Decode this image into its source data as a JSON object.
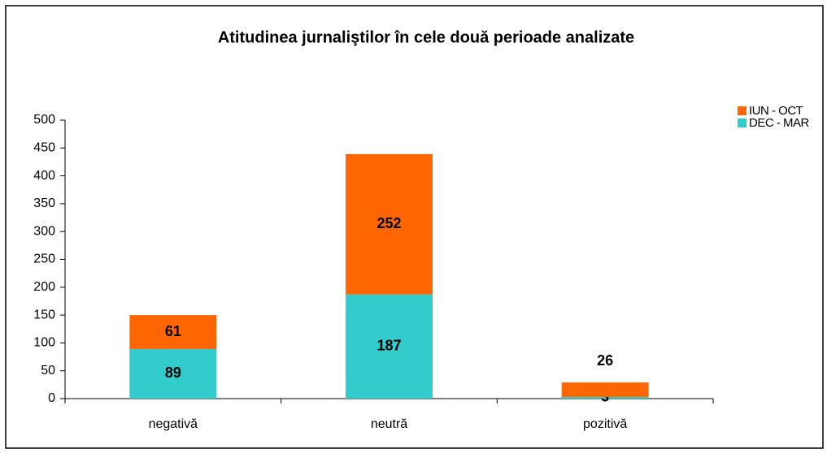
{
  "chart_data": {
    "type": "stacked_bar",
    "title": "Atitudinea jurnaliştilor în cele două perioade analizate",
    "categories": [
      "negativă",
      "neutră",
      "pozitivă"
    ],
    "series": [
      {
        "name": "DEC - MAR",
        "color": "#33cccc",
        "values": [
          89,
          187,
          3
        ]
      },
      {
        "name": "IUN - OCT",
        "color": "#ff6600",
        "values": [
          61,
          252,
          26
        ]
      }
    ],
    "ylim": [
      0,
      500
    ],
    "yticks": [
      0,
      50,
      100,
      150,
      200,
      250,
      300,
      350,
      400,
      450,
      500
    ],
    "legend": "right"
  }
}
